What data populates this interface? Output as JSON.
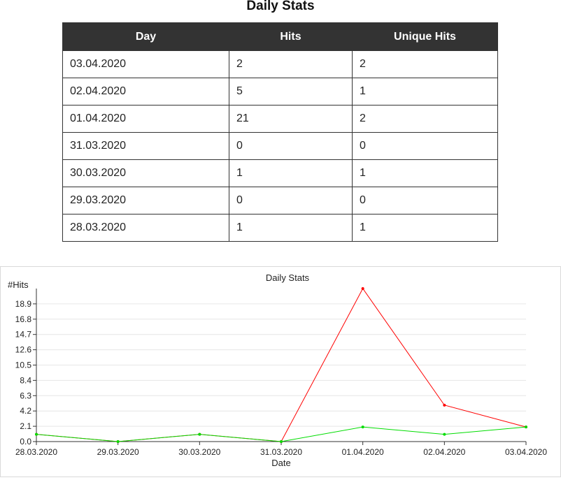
{
  "page_title": "Daily Stats",
  "table": {
    "headers": [
      "Day",
      "Hits",
      "Unique Hits"
    ],
    "rows": [
      [
        "03.04.2020",
        "2",
        "2"
      ],
      [
        "02.04.2020",
        "5",
        "1"
      ],
      [
        "01.04.2020",
        "21",
        "2"
      ],
      [
        "31.03.2020",
        "0",
        "0"
      ],
      [
        "30.03.2020",
        "1",
        "1"
      ],
      [
        "29.03.2020",
        "0",
        "0"
      ],
      [
        "28.03.2020",
        "1",
        "1"
      ]
    ]
  },
  "chart_data": {
    "type": "line",
    "title": "Daily Stats",
    "ylabel": "#Hits",
    "xlabel": "Date",
    "categories": [
      "28.03.2020",
      "29.03.2020",
      "30.03.2020",
      "31.03.2020",
      "01.04.2020",
      "02.04.2020",
      "03.04.2020"
    ],
    "y_ticks": [
      "0.0",
      "2.1",
      "4.2",
      "6.3",
      "8.4",
      "10.5",
      "12.6",
      "14.7",
      "16.8",
      "18.9"
    ],
    "ylim": [
      0,
      21
    ],
    "grid": true,
    "series": [
      {
        "values": [
          1,
          0,
          1,
          0,
          21,
          5,
          2
        ],
        "color": "#ff0000"
      },
      {
        "values": [
          1,
          0,
          1,
          0,
          2,
          1,
          2
        ],
        "color": "#00dd00"
      }
    ]
  }
}
